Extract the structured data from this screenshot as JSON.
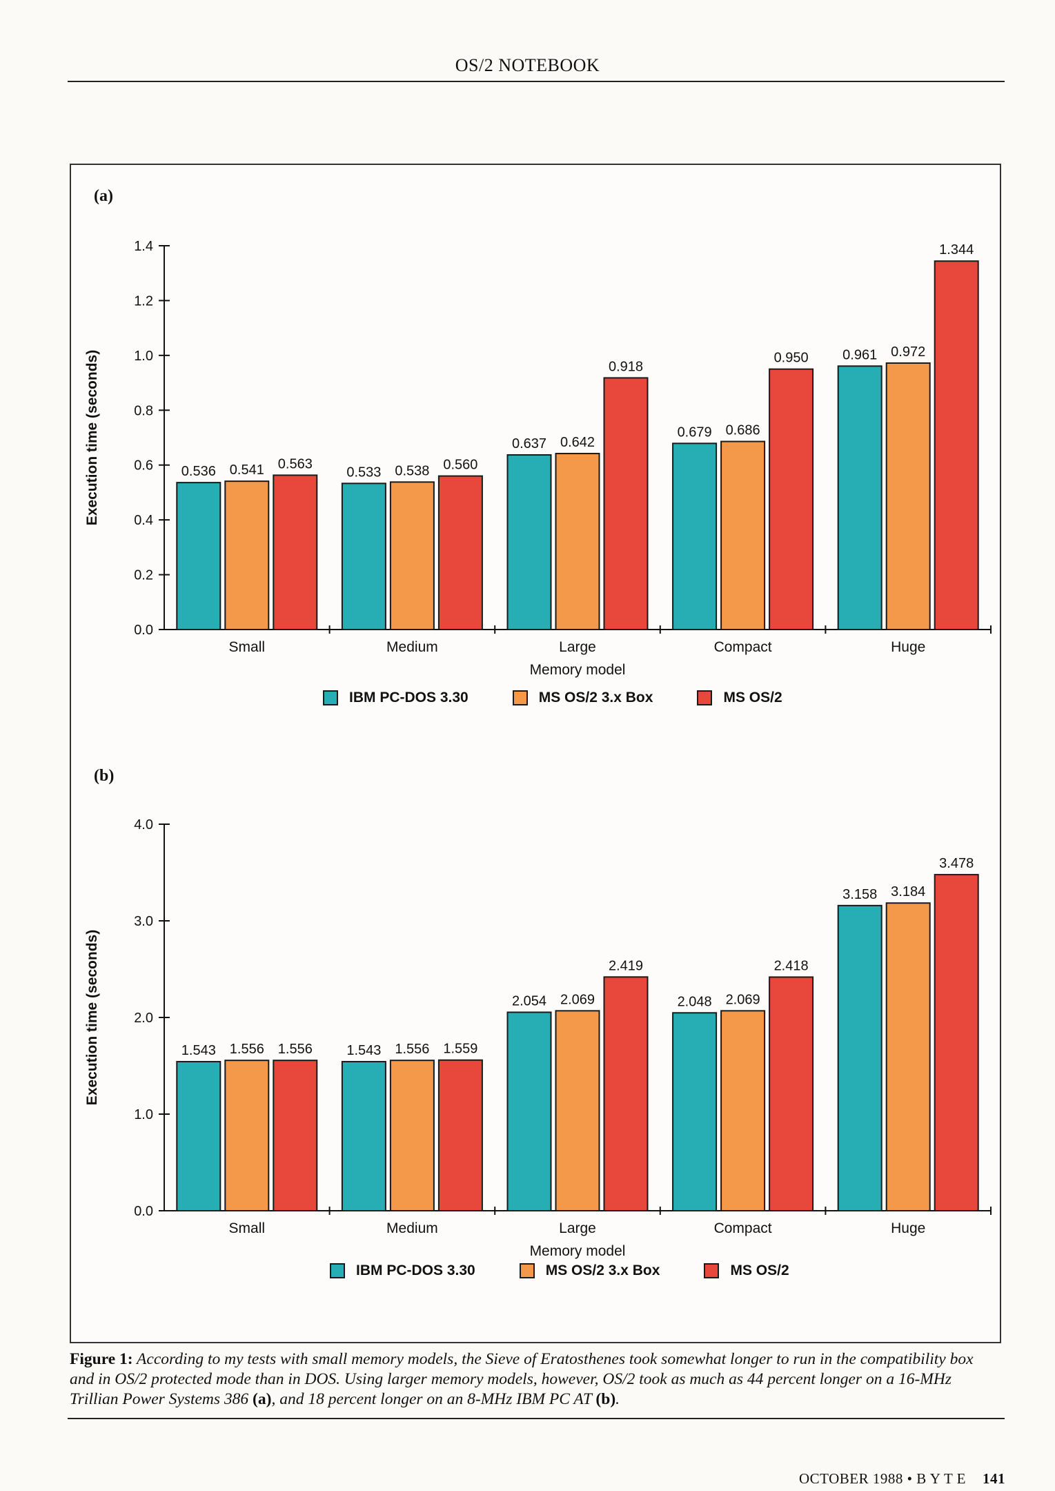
{
  "header": {
    "title": "OS/2 NOTEBOOK"
  },
  "colors": {
    "IBM PC-DOS 3.30": "#27aeb4",
    "MS OS/2 3.x Box": "#f4994a",
    "MS OS/2": "#e8473b"
  },
  "chart_data": [
    {
      "type": "bar",
      "panel": "(a)",
      "categories": [
        "Small",
        "Medium",
        "Large",
        "Compact",
        "Huge"
      ],
      "series": [
        {
          "name": "IBM PC-DOS 3.30",
          "values": [
            "0.536",
            "0.533",
            "0.637",
            "0.679",
            "0.961"
          ]
        },
        {
          "name": "MS OS/2 3.x Box",
          "values": [
            "0.541",
            "0.538",
            "0.642",
            "0.686",
            "0.972"
          ]
        },
        {
          "name": "MS OS/2",
          "values": [
            "0.563",
            "0.560",
            "0.918",
            "0.950",
            "1.344"
          ]
        }
      ],
      "xlabel": "Memory model",
      "ylabel": "Execution time (seconds)",
      "ylim": [
        0,
        1.4
      ],
      "yticks": [
        "0.0",
        "0.2",
        "0.4",
        "0.6",
        "0.8",
        "1.0",
        "1.2",
        "1.4"
      ],
      "legend": "bottom"
    },
    {
      "type": "bar",
      "panel": "(b)",
      "categories": [
        "Small",
        "Medium",
        "Large",
        "Compact",
        "Huge"
      ],
      "series": [
        {
          "name": "IBM PC-DOS 3.30",
          "values": [
            "1.543",
            "1.543",
            "2.054",
            "2.048",
            "3.158"
          ]
        },
        {
          "name": "MS OS/2 3.x Box",
          "values": [
            "1.556",
            "1.556",
            "2.069",
            "2.069",
            "3.184"
          ]
        },
        {
          "name": "MS OS/2",
          "values": [
            "1.556",
            "1.559",
            "2.419",
            "2.418",
            "3.478"
          ]
        }
      ],
      "xlabel": "Memory model",
      "ylabel": "Execution time (seconds)",
      "ylim": [
        0,
        4.0
      ],
      "yticks": [
        "0.0",
        "1.0",
        "2.0",
        "3.0",
        "4.0"
      ],
      "legend": "bottom"
    }
  ],
  "caption": {
    "label": "Figure 1:",
    "text_1": "According to my tests with small memory models, the Sieve of Eratosthenes took somewhat longer to run in the compatibility box and in OS/2 protected mode than in DOS. Using larger memory models, however, OS/2 took as much as 44 percent longer on a 16-MHz Trillian Power Systems 386 ",
    "ref_a": "(a)",
    "text_2": ", and 18 percent longer on an 8-MHz IBM PC AT ",
    "ref_b": "(b)",
    "text_3": "."
  },
  "footer": {
    "issue": "OCTOBER 1988 • B Y T E",
    "page": "141"
  }
}
